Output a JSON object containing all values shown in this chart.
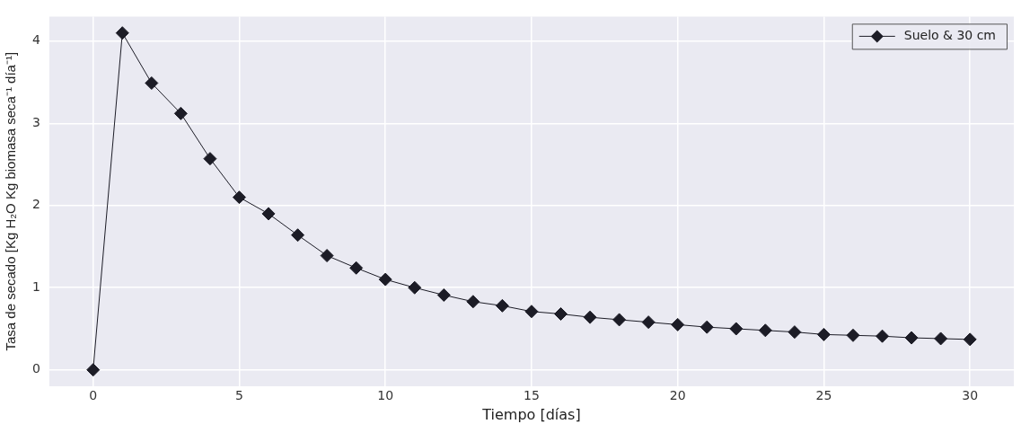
{
  "chart_data": {
    "type": "line",
    "xlabel": "Tiempo [días]",
    "ylabel": "Tasa de secado [Kg H₂O Kg biomasa seca⁻¹ día⁻¹]",
    "x": [
      0,
      1,
      2,
      3,
      4,
      5,
      6,
      7,
      8,
      9,
      10,
      11,
      12,
      13,
      14,
      15,
      16,
      17,
      18,
      19,
      20,
      21,
      22,
      23,
      24,
      25,
      26,
      27,
      28,
      29,
      30
    ],
    "series": [
      {
        "name": "Suelo & 30 cm",
        "color": "#1c1c26",
        "values": [
          0,
          4.1,
          3.49,
          3.12,
          2.57,
          2.1,
          1.9,
          1.64,
          1.39,
          1.24,
          1.1,
          1.0,
          0.91,
          0.83,
          0.78,
          0.71,
          0.68,
          0.64,
          0.61,
          0.58,
          0.55,
          0.52,
          0.5,
          0.48,
          0.46,
          0.43,
          0.42,
          0.41,
          0.39,
          0.38,
          0.37
        ]
      }
    ],
    "xlim": [
      -1.5,
      31.5
    ],
    "xticks": [
      0,
      5,
      10,
      15,
      20,
      25,
      30
    ],
    "ylim": [
      -0.2,
      4.3
    ],
    "yticks": [
      0,
      1,
      2,
      3,
      4
    ],
    "grid": true,
    "legend": "top right",
    "marker": "diamond",
    "line_style": "solid"
  }
}
